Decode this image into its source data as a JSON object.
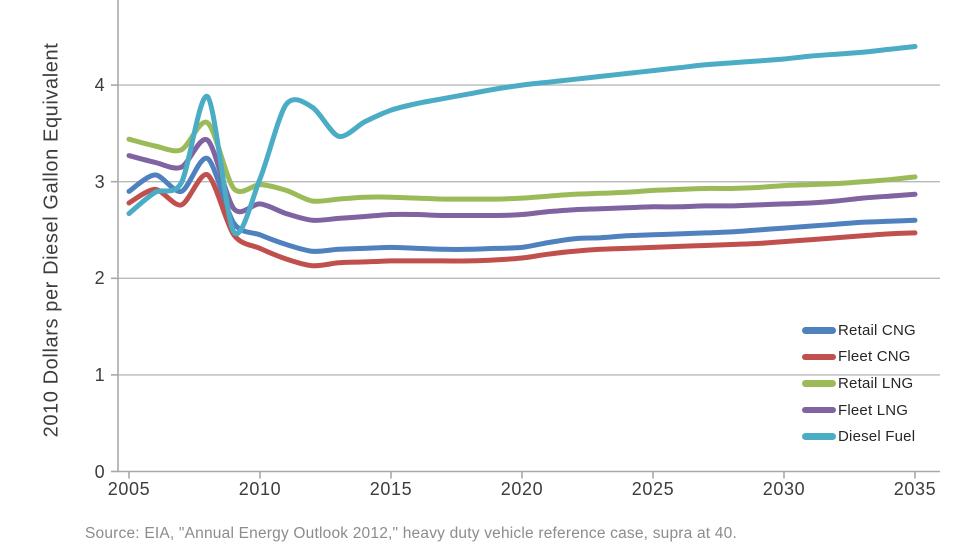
{
  "chart_data": {
    "type": "line",
    "title": "",
    "xlabel": "",
    "ylabel": "2010 Dollars per Diesel Gallon Equivalent",
    "x": [
      2005,
      2006,
      2007,
      2008,
      2009,
      2010,
      2011,
      2012,
      2013,
      2014,
      2015,
      2016,
      2017,
      2018,
      2019,
      2020,
      2021,
      2022,
      2023,
      2024,
      2025,
      2026,
      2027,
      2028,
      2029,
      2030,
      2031,
      2032,
      2033,
      2034,
      2035
    ],
    "x_ticks": [
      2005,
      2010,
      2015,
      2020,
      2025,
      2030,
      2035
    ],
    "y_ticks": [
      0,
      1,
      2,
      3,
      4
    ],
    "xlim": [
      2005,
      2035
    ],
    "ylim": [
      0,
      4.88
    ],
    "grid": "horizontal-only",
    "legend_position": "inside-right",
    "series": [
      {
        "name": "Retail CNG",
        "color": "#4e81bd",
        "values": [
          2.9,
          3.07,
          2.9,
          3.24,
          2.57,
          2.45,
          2.35,
          2.28,
          2.3,
          2.31,
          2.32,
          2.31,
          2.3,
          2.3,
          2.31,
          2.32,
          2.37,
          2.41,
          2.42,
          2.44,
          2.45,
          2.46,
          2.47,
          2.48,
          2.5,
          2.52,
          2.54,
          2.56,
          2.58,
          2.59,
          2.6
        ]
      },
      {
        "name": "Fleet CNG",
        "color": "#c0504d",
        "values": [
          2.78,
          2.92,
          2.76,
          3.07,
          2.45,
          2.31,
          2.2,
          2.13,
          2.16,
          2.17,
          2.18,
          2.18,
          2.18,
          2.18,
          2.19,
          2.21,
          2.25,
          2.28,
          2.3,
          2.31,
          2.32,
          2.33,
          2.34,
          2.35,
          2.36,
          2.38,
          2.4,
          2.42,
          2.44,
          2.46,
          2.47
        ]
      },
      {
        "name": "Retail LNG",
        "color": "#9bbb59",
        "values": [
          3.44,
          3.37,
          3.33,
          3.61,
          2.93,
          2.97,
          2.91,
          2.8,
          2.82,
          2.84,
          2.84,
          2.83,
          2.82,
          2.82,
          2.82,
          2.83,
          2.85,
          2.87,
          2.88,
          2.89,
          2.91,
          2.92,
          2.93,
          2.93,
          2.94,
          2.96,
          2.97,
          2.98,
          3.0,
          3.02,
          3.05
        ]
      },
      {
        "name": "Fleet LNG",
        "color": "#8064a2",
        "values": [
          3.27,
          3.2,
          3.15,
          3.43,
          2.72,
          2.77,
          2.67,
          2.6,
          2.62,
          2.64,
          2.66,
          2.66,
          2.65,
          2.65,
          2.65,
          2.66,
          2.69,
          2.71,
          2.72,
          2.73,
          2.74,
          2.74,
          2.75,
          2.75,
          2.76,
          2.77,
          2.78,
          2.8,
          2.83,
          2.85,
          2.87
        ]
      },
      {
        "name": "Diesel Fuel",
        "color": "#4bacc6",
        "values": [
          2.67,
          2.89,
          2.99,
          3.88,
          2.48,
          3.03,
          3.8,
          3.77,
          3.47,
          3.62,
          3.74,
          3.81,
          3.86,
          3.91,
          3.96,
          4.0,
          4.03,
          4.06,
          4.09,
          4.12,
          4.15,
          4.18,
          4.21,
          4.23,
          4.25,
          4.27,
          4.3,
          4.32,
          4.34,
          4.37,
          4.4
        ]
      }
    ]
  },
  "source_note": "Source: EIA, \"Annual Energy Outlook 2012,\" heavy duty vehicle reference case, supra at 40.",
  "colors": {
    "background": "#ffffff",
    "gridline": "#b9b9b9",
    "axis": "#a8a8a8",
    "tick_label": "#3d3d3d",
    "legend_text": "#262626",
    "source_text": "#8c8c8c"
  }
}
